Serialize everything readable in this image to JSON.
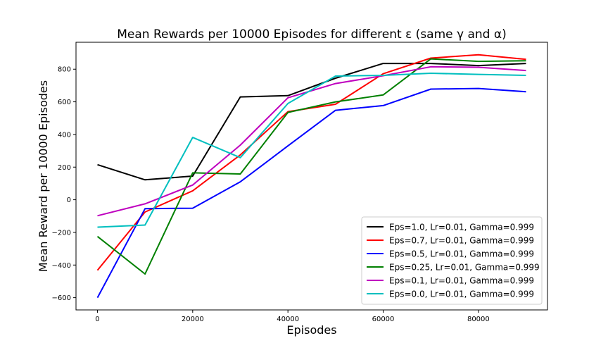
{
  "chart_data": {
    "type": "line",
    "title": "Mean Rewards per 10000 Episodes for different ε (same γ and α)",
    "xlabel": "Episodes",
    "ylabel": "Mean Reward per 10000 Episodes",
    "x": [
      0,
      10000,
      20000,
      30000,
      40000,
      50000,
      60000,
      70000,
      80000,
      90000
    ],
    "xlim": [
      -4500,
      94500
    ],
    "ylim": [
      -675,
      965
    ],
    "xticks": [
      0,
      20000,
      40000,
      60000,
      80000
    ],
    "yticks": [
      -600,
      -400,
      -200,
      0,
      200,
      400,
      600,
      800
    ],
    "grid": false,
    "legend_position": "lower right",
    "series": [
      {
        "name": "Eps=1.0, Lr=0.01, Gamma=0.999",
        "color": "#000000",
        "values": [
          215,
          122,
          145,
          630,
          638,
          745,
          835,
          835,
          822,
          835
        ]
      },
      {
        "name": "Eps=0.7, Lr=0.01, Gamma=0.999",
        "color": "#ff0000",
        "values": [
          -432,
          -75,
          55,
          275,
          540,
          585,
          772,
          868,
          888,
          860
        ]
      },
      {
        "name": "Eps=0.5, Lr=0.01, Gamma=0.999",
        "color": "#0000ff",
        "values": [
          -600,
          -55,
          -52,
          110,
          330,
          548,
          577,
          678,
          682,
          662
        ]
      },
      {
        "name": "Eps=0.25, Lr=0.01, Gamma=0.999",
        "color": "#008000",
        "values": [
          -225,
          -455,
          165,
          158,
          535,
          600,
          642,
          863,
          848,
          852
        ]
      },
      {
        "name": "Eps=0.1, Lr=0.01, Gamma=0.999",
        "color": "#bf00bf",
        "values": [
          -98,
          -25,
          90,
          335,
          625,
          712,
          760,
          815,
          812,
          792
        ]
      },
      {
        "name": "Eps=0.0, Lr=0.01, Gamma=0.999",
        "color": "#00bfbf",
        "values": [
          -168,
          -155,
          382,
          258,
          590,
          758,
          762,
          775,
          768,
          762
        ]
      }
    ]
  }
}
